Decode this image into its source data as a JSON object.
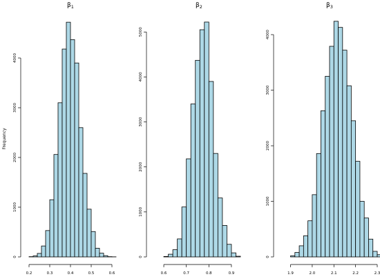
{
  "chart_data": [
    {
      "type": "bar",
      "title_symbol": "β",
      "title_sub": "1",
      "ylabel": "Frequency",
      "bin_start": 0.2,
      "bin_width": 0.02,
      "values": [
        5,
        20,
        70,
        220,
        530,
        1150,
        2060,
        3100,
        4180,
        4720,
        4370,
        3900,
        2600,
        1680,
        960,
        510,
        175,
        75,
        25,
        5,
        2
      ],
      "xlim": [
        0.2,
        0.62
      ],
      "xticks": [
        "0.2",
        "0.3",
        "0.4",
        "0.5",
        "0.6"
      ],
      "yticks": [
        "0",
        "1000",
        "2000",
        "3000",
        "4000"
      ],
      "ylim": [
        0,
        4750
      ]
    },
    {
      "type": "bar",
      "title_symbol": "β",
      "title_sub": "2",
      "ylabel": "",
      "bin_start": 0.6,
      "bin_width": 0.02,
      "values": [
        10,
        60,
        160,
        400,
        1110,
        2180,
        3400,
        4370,
        5050,
        5220,
        3900,
        2300,
        1310,
        700,
        280,
        90,
        15
      ],
      "xlim": [
        0.56,
        0.94
      ],
      "xticks": [
        "0.6",
        "0.7",
        "0.8",
        "0.9"
      ],
      "yticks": [
        "0",
        "1000",
        "2000",
        "3000",
        "4000",
        "5000"
      ],
      "ylim": [
        0,
        5250
      ]
    },
    {
      "type": "bar",
      "title_symbol": "β",
      "title_sub": "3",
      "ylabel": "",
      "bin_start": 1.9,
      "bin_width": 0.02,
      "values": [
        20,
        80,
        200,
        380,
        650,
        1120,
        1860,
        2630,
        3250,
        3790,
        4240,
        4130,
        3720,
        3080,
        2450,
        1720,
        1000,
        700,
        320,
        100,
        40
      ],
      "xlim": [
        1.86,
        2.3
      ],
      "xticks": [
        "1.9",
        "2.0",
        "2.1",
        "2.2",
        "2.3"
      ],
      "yticks": [
        "0",
        "1000",
        "2000",
        "3000",
        "4000"
      ],
      "ylim": [
        0,
        4250
      ]
    }
  ]
}
